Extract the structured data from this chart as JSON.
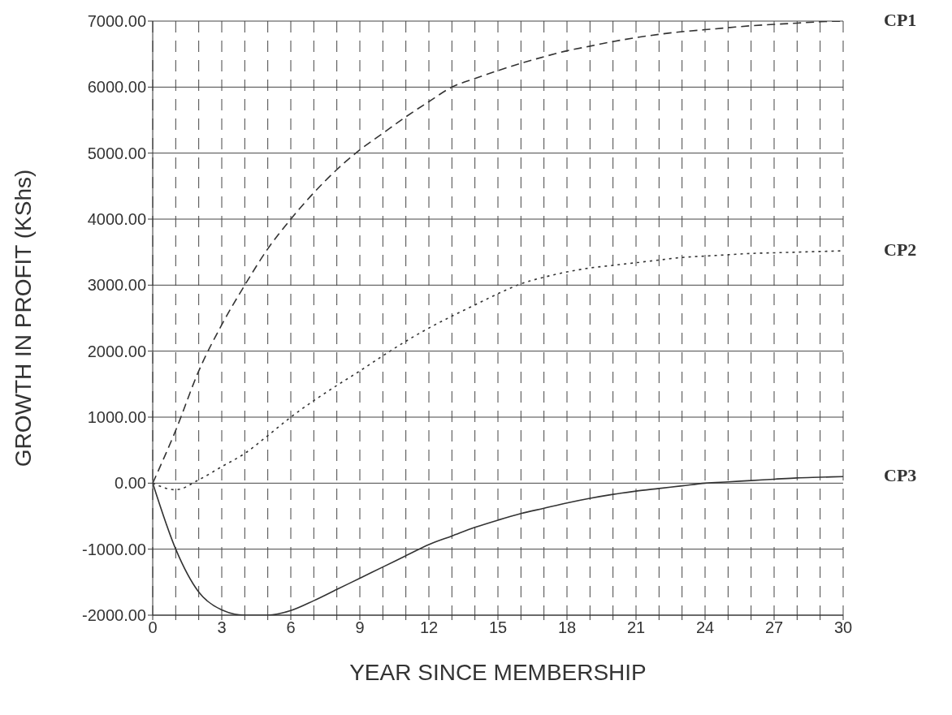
{
  "chart_data": {
    "type": "line",
    "xlabel": "YEAR SINCE MEMBERSHIP",
    "ylabel": "GROWTH IN PROFIT (KShs)",
    "x": [
      0,
      1,
      2,
      3,
      4,
      5,
      6,
      7,
      8,
      9,
      10,
      11,
      12,
      13,
      14,
      15,
      16,
      17,
      18,
      19,
      20,
      21,
      22,
      23,
      24,
      25,
      26,
      27,
      28,
      29,
      30
    ],
    "series": [
      {
        "name": "CP1",
        "color": "#333333",
        "line_style": "dashed",
        "values": [
          0,
          800,
          1700,
          2400,
          3000,
          3550,
          4000,
          4400,
          4750,
          5050,
          5300,
          5550,
          5780,
          6000,
          6130,
          6250,
          6360,
          6460,
          6550,
          6620,
          6690,
          6750,
          6800,
          6840,
          6870,
          6900,
          6930,
          6950,
          6970,
          6990,
          7000
        ]
      },
      {
        "name": "CP2",
        "color": "#333333",
        "line_style": "dotted",
        "values": [
          0,
          -100,
          50,
          250,
          450,
          720,
          1000,
          1250,
          1480,
          1700,
          1930,
          2150,
          2350,
          2530,
          2700,
          2870,
          3020,
          3120,
          3200,
          3260,
          3300,
          3340,
          3380,
          3420,
          3440,
          3460,
          3480,
          3490,
          3500,
          3510,
          3520
        ]
      },
      {
        "name": "CP3",
        "color": "#333333",
        "line_style": "solid",
        "values": [
          0,
          -1000,
          -1650,
          -1920,
          -2000,
          -2000,
          -1930,
          -1780,
          -1610,
          -1440,
          -1270,
          -1100,
          -930,
          -800,
          -670,
          -560,
          -460,
          -380,
          -300,
          -230,
          -170,
          -120,
          -80,
          -40,
          0,
          20,
          40,
          60,
          80,
          90,
          100
        ]
      }
    ],
    "xlim": [
      0,
      30
    ],
    "xticks": [
      0,
      {
        "value": 1,
        "label": null
      },
      {
        "value": 2,
        "label": null
      },
      3,
      {
        "value": 4,
        "label": null
      },
      {
        "value": 5,
        "label": null
      },
      6,
      {
        "value": 7,
        "label": null
      },
      {
        "value": 8,
        "label": null
      },
      9,
      {
        "value": 10,
        "label": null
      },
      {
        "value": 11,
        "label": null
      },
      12,
      {
        "value": 13,
        "label": null
      },
      {
        "value": 14,
        "label": null
      },
      15,
      {
        "value": 16,
        "label": null
      },
      {
        "value": 17,
        "label": null
      },
      18,
      {
        "value": 19,
        "label": null
      },
      {
        "value": 20,
        "label": null
      },
      21,
      {
        "value": 22,
        "label": null
      },
      {
        "value": 23,
        "label": null
      },
      24,
      {
        "value": 25,
        "label": null
      },
      {
        "value": 26,
        "label": null
      },
      27,
      {
        "value": 28,
        "label": null
      },
      {
        "value": 29,
        "label": null
      },
      30
    ],
    "ylim": [
      -2000,
      7000
    ],
    "yticks": [
      {
        "value": -2000,
        "label": "-2000.00"
      },
      {
        "value": -1000,
        "label": "-1000.00"
      },
      {
        "value": 0,
        "label": "0.00"
      },
      {
        "value": 1000,
        "label": "1000.00"
      },
      {
        "value": 2000,
        "label": "2000.00"
      },
      {
        "value": 3000,
        "label": "3000.00"
      },
      {
        "value": 4000,
        "label": "4000.00"
      },
      {
        "value": 5000,
        "label": "5000.00"
      },
      {
        "value": 6000,
        "label": "6000.00"
      },
      {
        "value": 7000,
        "label": "7000.00"
      }
    ],
    "grid": true,
    "legend": false,
    "marker": "none"
  }
}
